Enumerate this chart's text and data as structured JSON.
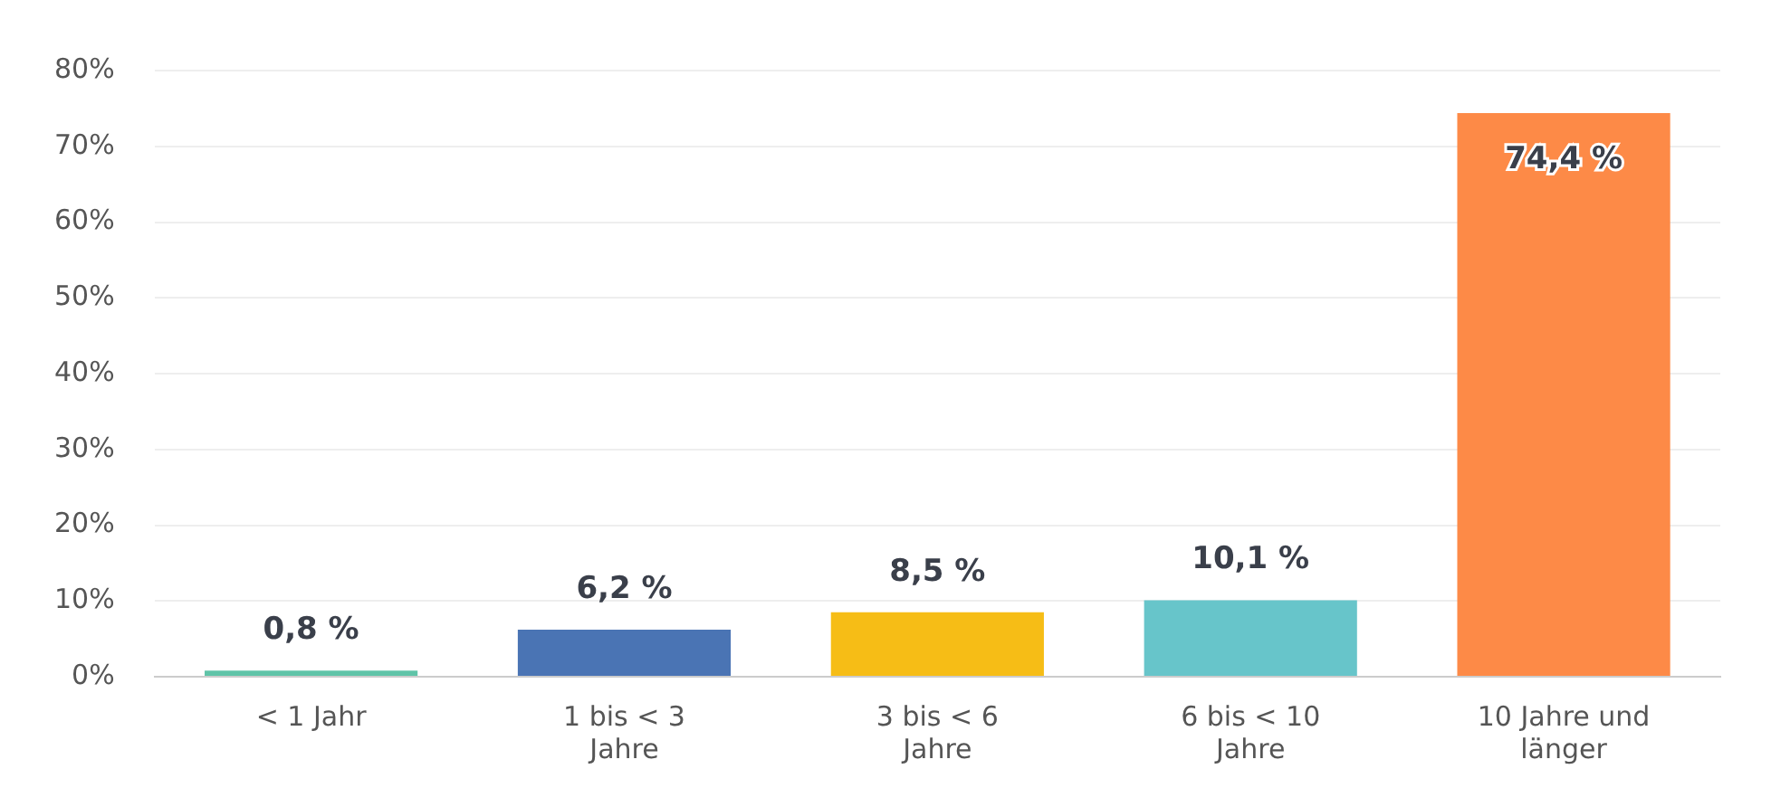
{
  "chart_data": {
    "type": "bar",
    "categories": [
      "< 1 Jahr",
      "1 bis < 3 Jahre",
      "3 bis < 6 Jahre",
      "6 bis < 10 Jahre",
      "10 Jahre und länger"
    ],
    "values": [
      0.8,
      6.2,
      8.5,
      10.1,
      74.4
    ],
    "colors": [
      "#5fc4a8",
      "#4a74b4",
      "#f6bd16",
      "#67c5ca",
      "#fd8a47"
    ],
    "value_labels": [
      "0,8 %",
      "6,2 %",
      "8,5 %",
      "10,1 %",
      "74,4 %"
    ],
    "ylim": [
      0,
      80
    ],
    "yticks": [
      {
        "value": 0,
        "label": "0%"
      },
      {
        "value": 10,
        "label": "10%"
      },
      {
        "value": 20,
        "label": "20%"
      },
      {
        "value": 30,
        "label": "30%"
      },
      {
        "value": 40,
        "label": "40%"
      },
      {
        "value": 50,
        "label": "50%"
      },
      {
        "value": 60,
        "label": "60%"
      },
      {
        "value": 70,
        "label": "70%"
      },
      {
        "value": 80,
        "label": "80%"
      }
    ],
    "grid": "y",
    "legend": false
  }
}
